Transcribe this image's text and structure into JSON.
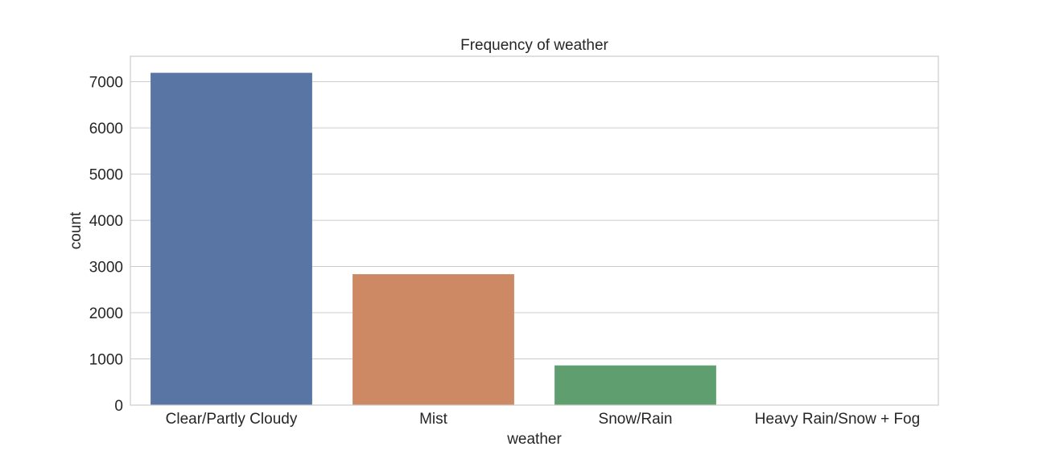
{
  "chart_data": {
    "type": "bar",
    "title": "Frequency of weather",
    "xlabel": "weather",
    "ylabel": "count",
    "categories": [
      "Clear/Partly Cloudy",
      "Mist",
      "Snow/Rain",
      "Heavy Rain/Snow + Fog"
    ],
    "values": [
      7192,
      2834,
      859,
      1
    ],
    "ylim": [
      0,
      7550
    ],
    "yticks": [
      0,
      1000,
      2000,
      3000,
      4000,
      5000,
      6000,
      7000
    ],
    "colors": [
      "#5975a4",
      "#cc8963",
      "#5f9e6e",
      "#b55d60"
    ],
    "grid": true,
    "legend": "none"
  },
  "colors": {
    "grid": "#cccccc",
    "frame": "#cccccc",
    "text": "#262626",
    "background": "#ffffff"
  }
}
